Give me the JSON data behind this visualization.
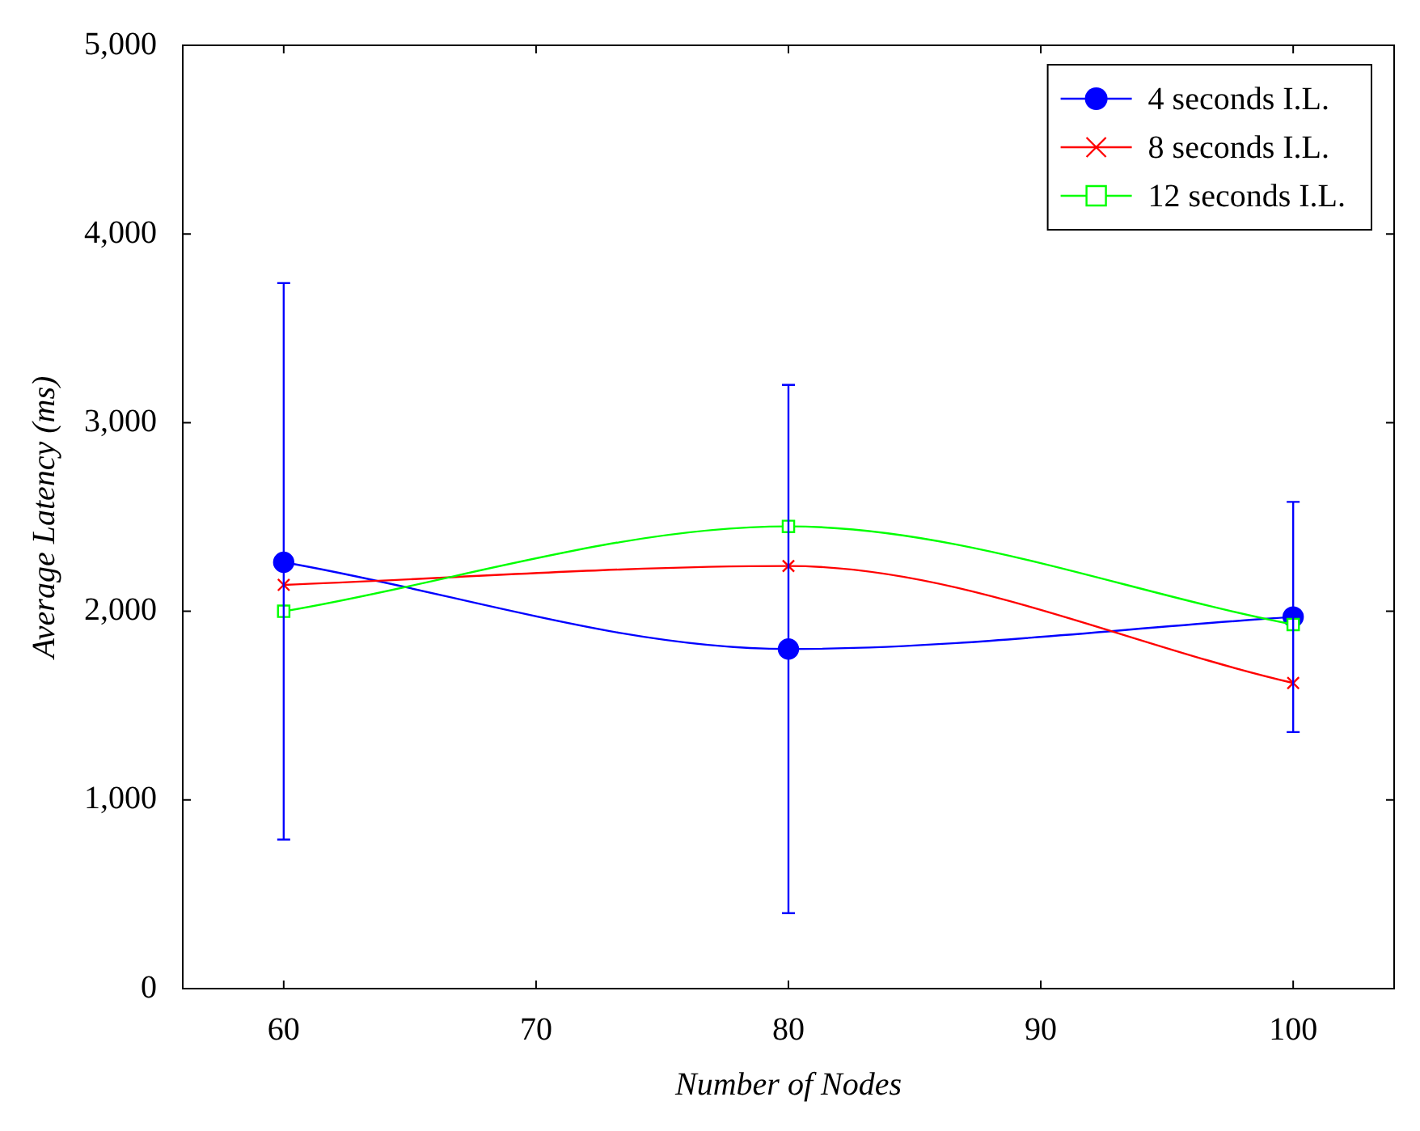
{
  "chart_data": {
    "type": "line",
    "xlabel": "Number of Nodes",
    "ylabel": "Average Latency (ms)",
    "x": [
      60,
      80,
      100
    ],
    "series": [
      {
        "name": "4 seconds I.L.",
        "color": "#0000ff",
        "marker": "circle",
        "values": [
          2260,
          1800,
          1970
        ],
        "errors": [
          [
            790,
            3740
          ],
          [
            400,
            3200
          ],
          [
            1360,
            2580
          ]
        ]
      },
      {
        "name": "8 seconds I.L.",
        "color": "#ff0000",
        "marker": "cross",
        "values": [
          2140,
          2240,
          1620
        ]
      },
      {
        "name": "12 seconds I.L.",
        "color": "#00ff00",
        "marker": "square",
        "values": [
          2000,
          2450,
          1930
        ]
      }
    ],
    "xlim": [
      56,
      104
    ],
    "xticks": [
      60,
      70,
      80,
      90,
      100
    ],
    "ylim": [
      0,
      5000
    ],
    "yticks": [
      {
        "value": 0,
        "label": "0"
      },
      {
        "value": 1000,
        "label": "1,000"
      },
      {
        "value": 2000,
        "label": "2,000"
      },
      {
        "value": 3000,
        "label": "3,000"
      },
      {
        "value": 4000,
        "label": "4,000"
      },
      {
        "value": 5000,
        "label": "5,000"
      }
    ],
    "grid": false,
    "legend": "top right"
  }
}
